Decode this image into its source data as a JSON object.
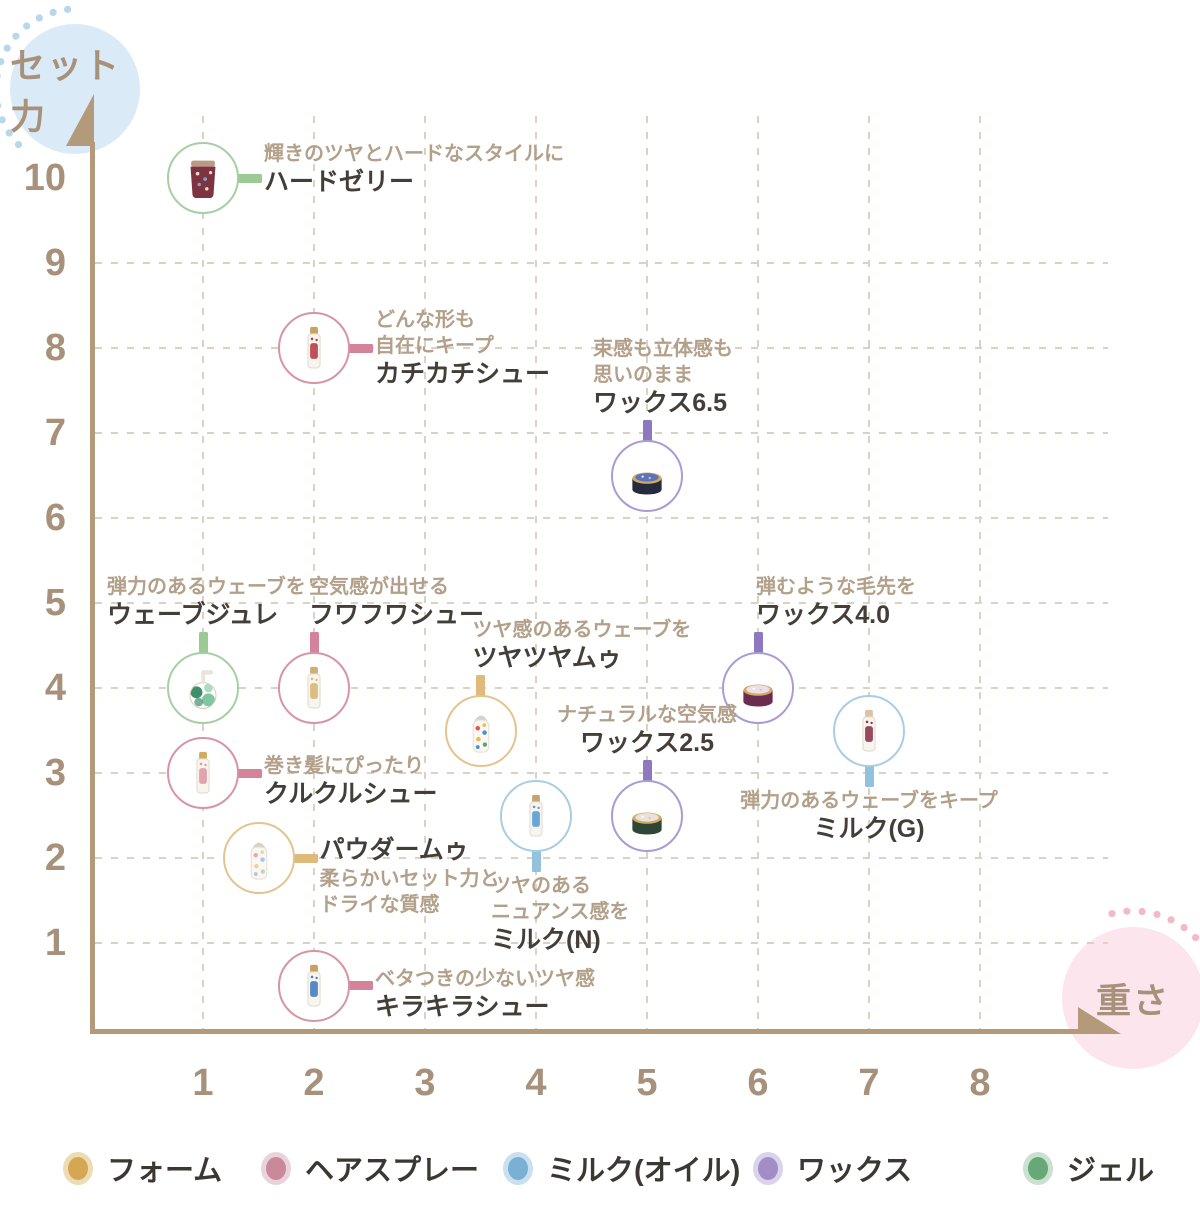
{
  "axes": {
    "y_label": "セット力",
    "x_label": "重さ"
  },
  "legend": [
    {
      "id": "foam",
      "label": "フォーム",
      "color": "#d5a753",
      "ring": "#ecdcb4"
    },
    {
      "id": "spray",
      "label": "ヘアスプレー",
      "color": "#c9899b",
      "ring": "#e9d3da"
    },
    {
      "id": "milk",
      "label": "ミルク(オイル)",
      "color": "#79b0d3",
      "ring": "#c9e0f0"
    },
    {
      "id": "wax",
      "label": "ワックス",
      "color": "#a28dc7",
      "ring": "#dbd2ec"
    },
    {
      "id": "gel",
      "label": "ジェル",
      "color": "#67a878",
      "ring": "#c9e1ce"
    }
  ],
  "categories": {
    "foam": {
      "stroke": "#e4c48e",
      "connector": "#e0ba7b"
    },
    "spray": {
      "stroke": "#d794a6",
      "connector": "#d4839a"
    },
    "milk": {
      "stroke": "#a9cde4",
      "connector": "#93c2dc"
    },
    "wax": {
      "stroke": "#aa9cd3",
      "connector": "#8c79c0"
    },
    "gel": {
      "stroke": "#a6cfa3",
      "connector": "#9bca95"
    }
  },
  "chart_data": {
    "type": "scatter",
    "xlabel": "重さ",
    "ylabel": "セット力",
    "xlim": [
      0,
      8
    ],
    "ylim": [
      0,
      10
    ],
    "x_ticks": [
      1,
      2,
      3,
      4,
      5,
      6,
      7,
      8
    ],
    "y_ticks": [
      1,
      2,
      3,
      4,
      5,
      6,
      7,
      8,
      9,
      10
    ],
    "grid": true,
    "legend_position": "bottom",
    "products": [
      {
        "id": "hard-jelly",
        "name": "ハードゼリー",
        "desc": [
          "輝きのツヤとハードなスタイルに"
        ],
        "category": "gel",
        "x": 1,
        "y": 10,
        "icon": "jar",
        "icon_colors": [
          "#7d3440",
          "#ead9c9",
          "#7aa6c9"
        ],
        "label": {
          "side": "right",
          "dy": -37
        }
      },
      {
        "id": "kachikachi-shu",
        "name": "カチカチシュー",
        "desc": [
          "どんな形も",
          "自在にキープ"
        ],
        "category": "spray",
        "x": 2,
        "y": 8,
        "icon": "spray",
        "icon_colors": [
          "#b8414e",
          "#c9a260"
        ],
        "label": {
          "side": "right",
          "dy": -41
        }
      },
      {
        "id": "wax-65",
        "name": "ワックス6.5",
        "desc": [
          "束感も立体感も",
          "思いのまま"
        ],
        "category": "wax",
        "x": 5,
        "y": 6.5,
        "icon": "tin",
        "icon_colors": [
          "#262b3d",
          "#5d74b8",
          "#d2a867"
        ],
        "label": {
          "side": "top",
          "dx": -54
        }
      },
      {
        "id": "wave-jule",
        "name": "ウェーブジュレ",
        "desc": [
          "弾力のあるウェーブを"
        ],
        "category": "gel",
        "x": 1,
        "y": 4,
        "icon": "pump",
        "icon_colors": [
          "#3f8f6e",
          "#7ec7a0"
        ],
        "label": {
          "side": "top",
          "dx": -96
        }
      },
      {
        "id": "fuwafuwa-shu",
        "name": "フワフワシュー",
        "desc": [
          "空気感が出せる"
        ],
        "category": "spray",
        "x": 2,
        "y": 4,
        "icon": "spray",
        "icon_colors": [
          "#d8ba78",
          "#cbb079"
        ],
        "label": {
          "side": "top",
          "dx": -5
        }
      },
      {
        "id": "tsuyatsuya-mu",
        "name": "ツヤツヤムゥ",
        "desc": [
          "ツヤ感のあるウェーブを"
        ],
        "category": "foam",
        "x": 3.5,
        "y": 3.5,
        "icon": "bottle",
        "icon_colors": [
          "#e0584c",
          "#4a90d9",
          "#e8c24a",
          "#5aa86e"
        ],
        "label": {
          "side": "top",
          "dx": -8
        }
      },
      {
        "id": "wax-40",
        "name": "ワックス4.0",
        "desc": [
          "弾むような毛先を"
        ],
        "category": "wax",
        "x": 6,
        "y": 4,
        "icon": "tin",
        "icon_colors": [
          "#6b2d4f",
          "#ecdfe8",
          "#d2a867"
        ],
        "label": {
          "side": "top",
          "dx": -2
        }
      },
      {
        "id": "milk-g",
        "name": "ミルク(G)",
        "desc": [
          "弾力のあるウェーブをキープ"
        ],
        "category": "milk",
        "x": 7,
        "y": 3.5,
        "icon": "spray",
        "icon_colors": [
          "#8e3a52",
          "#d9c5a0"
        ],
        "label": {
          "side": "bottom",
          "dx": 0,
          "align": "center"
        }
      },
      {
        "id": "kurukuru-shu",
        "name": "クルクルシュー",
        "desc": [
          "巻き髪にぴったり"
        ],
        "category": "spray",
        "x": 1,
        "y": 3,
        "icon": "spray",
        "icon_colors": [
          "#e09aa8",
          "#d2ab62"
        ],
        "label": {
          "side": "right",
          "dy": -20
        }
      },
      {
        "id": "powder-mu",
        "name": "パウダームゥ",
        "desc": [
          "柔らかいセット力と",
          "ドライな質感"
        ],
        "category": "foam",
        "x": 1.5,
        "y": 2,
        "icon": "bottle",
        "icon_colors": [
          "#e8a8b8",
          "#a8c8e8",
          "#e8d8a0",
          "#b9d9b1"
        ],
        "label": {
          "side": "right",
          "dy": -23,
          "name_first": true
        }
      },
      {
        "id": "milk-n",
        "name": "ミルク(N)",
        "desc": [
          "ツヤのある",
          "ニュアンス感を"
        ],
        "category": "milk",
        "x": 4,
        "y": 2.5,
        "icon": "spray",
        "icon_colors": [
          "#5a9fd4",
          "#c9a272"
        ],
        "label": {
          "side": "bottom",
          "dx": -45
        }
      },
      {
        "id": "wax-25",
        "name": "ワックス2.5",
        "desc": [
          "ナチュラルな空気感"
        ],
        "category": "wax",
        "x": 5,
        "y": 2.5,
        "icon": "tin",
        "icon_colors": [
          "#2e4636",
          "#e9e2d8",
          "#d2a867"
        ],
        "label": {
          "side": "top",
          "dx": 0,
          "align": "center"
        }
      },
      {
        "id": "kirakira-shu",
        "name": "キラキラシュー",
        "desc": [
          "ベタつきの少ないツヤ感"
        ],
        "category": "spray",
        "x": 2,
        "y": 0.5,
        "icon": "spray",
        "icon_colors": [
          "#4a7fc0",
          "#c89f5f"
        ],
        "label": {
          "side": "right",
          "dy": -20
        }
      }
    ]
  }
}
